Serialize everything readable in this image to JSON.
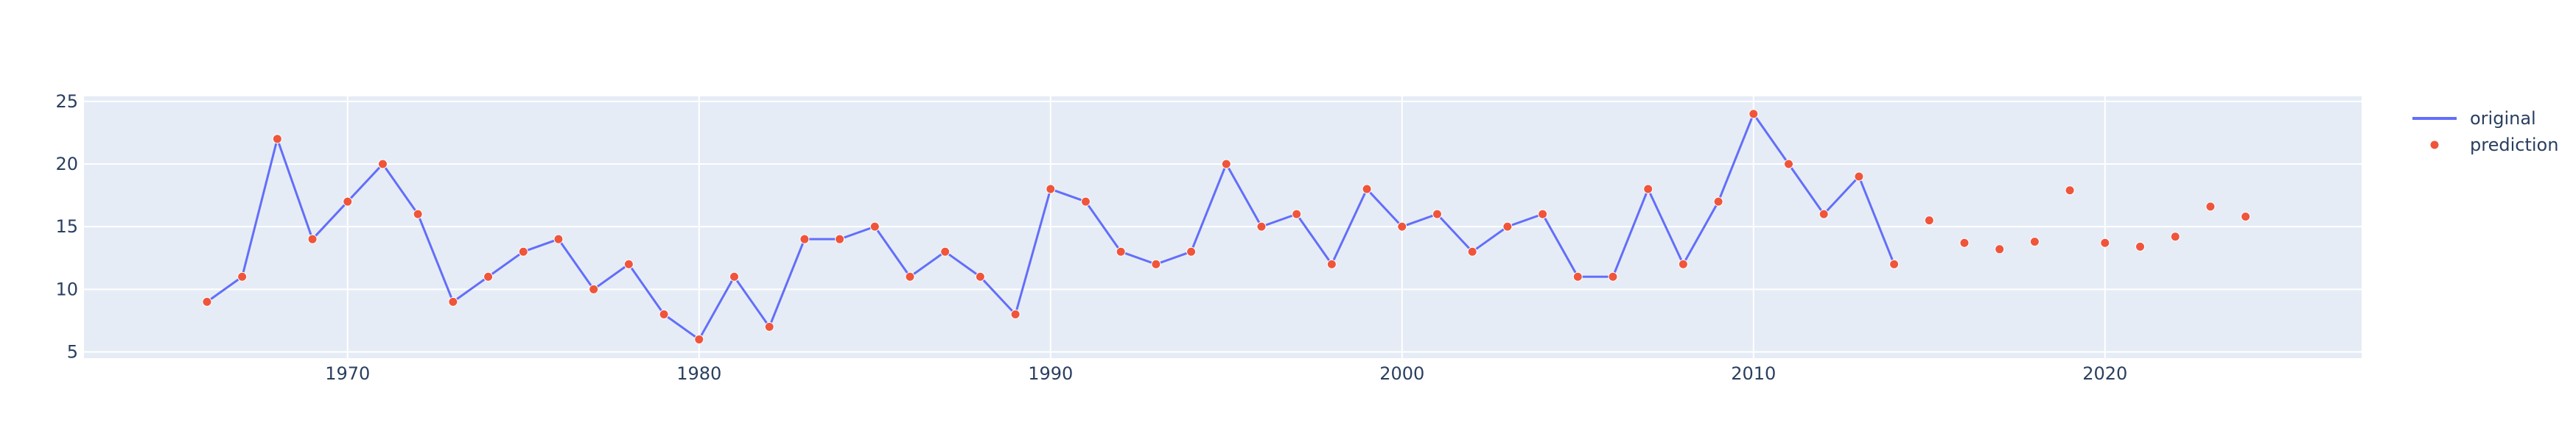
{
  "chart_data": {
    "type": "line",
    "title": "",
    "xlabel": "",
    "ylabel": "",
    "xlim": [
      1962.5,
      2027.3
    ],
    "ylim": [
      4.5,
      25.4
    ],
    "x_ticks": [
      1970,
      1980,
      1990,
      2000,
      2010,
      2020
    ],
    "y_ticks": [
      5,
      10,
      15,
      20,
      25
    ],
    "grid": true,
    "legend_position": "top-right",
    "colors": {
      "plot_background": "#e5ecf6",
      "grid": "#ffffff",
      "original_line": "#636efa",
      "prediction_marker": "#ef553b",
      "text": "#2a3f5f"
    },
    "series": [
      {
        "name": "original",
        "mode": "lines+markers",
        "x": [
          1966,
          1967,
          1968,
          1969,
          1970,
          1971,
          1972,
          1973,
          1974,
          1975,
          1976,
          1977,
          1978,
          1979,
          1980,
          1981,
          1982,
          1983,
          1984,
          1985,
          1986,
          1987,
          1988,
          1989,
          1990,
          1991,
          1992,
          1993,
          1994,
          1995,
          1996,
          1997,
          1998,
          1999,
          2000,
          2001,
          2002,
          2003,
          2004,
          2005,
          2006,
          2007,
          2008,
          2009,
          2010,
          2011,
          2012,
          2013,
          2014
        ],
        "y": [
          9,
          11,
          22,
          14,
          17,
          20,
          16,
          9,
          11,
          13,
          14,
          10,
          12,
          8,
          6,
          11,
          7,
          14,
          14,
          15,
          11,
          13,
          11,
          8,
          18,
          17,
          13,
          12,
          13,
          20,
          15,
          16,
          12,
          18,
          15,
          16,
          13,
          15,
          16,
          11,
          11,
          18,
          12,
          17,
          24,
          20,
          16,
          19,
          12
        ]
      },
      {
        "name": "prediction",
        "mode": "markers",
        "x": [
          2015,
          2016,
          2017,
          2018,
          2019,
          2020,
          2021,
          2022,
          2023,
          2024
        ],
        "y": [
          15.5,
          13.7,
          13.2,
          13.8,
          17.9,
          13.7,
          13.4,
          14.2,
          16.6,
          15.8
        ]
      }
    ]
  }
}
